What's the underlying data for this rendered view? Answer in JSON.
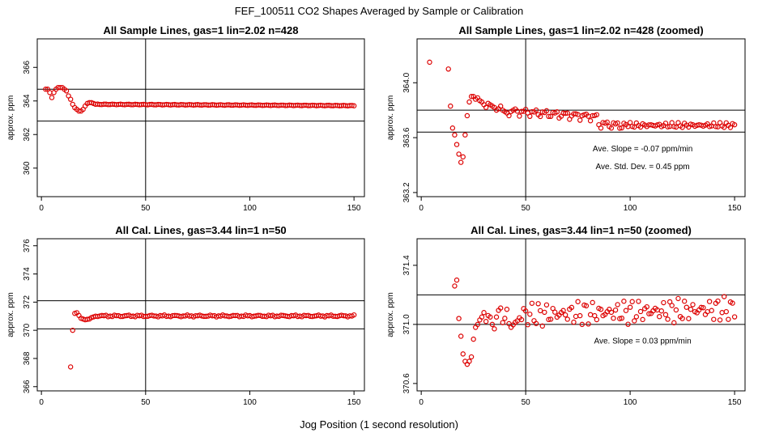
{
  "figure": {
    "title": "FEF_100511  CO2 Shapes Averaged by Sample or Calibration",
    "xlabel": "Jog Position (1 second resolution)"
  },
  "colors": {
    "points": "#dd0000",
    "axes": "#000000",
    "background": "#ffffff"
  },
  "chart_data": [
    {
      "id": "p1",
      "type": "scatter",
      "title": "All Sample Lines, gas=1 lin=2.02 n=428",
      "ylabel": "approx. ppm",
      "xlim": [
        -2,
        155
      ],
      "ylim": [
        358.3,
        367.7
      ],
      "xticks": [
        0,
        50,
        100,
        150
      ],
      "xticklabels": [
        "0",
        "50",
        "100",
        "150"
      ],
      "yticks": [
        360,
        362,
        364,
        366
      ],
      "yticklabels": [
        "360",
        "362",
        "364",
        "366"
      ],
      "vline": 50,
      "hlines": [
        364.7,
        362.8
      ],
      "annotations": [],
      "series": [
        {
          "x": [],
          "y": []
        }
      ]
    },
    {
      "id": "p2",
      "type": "scatter",
      "title": "All Sample Lines, gas=1 lin=2.02 n=428 (zoomed)",
      "ylabel": "approx. ppm",
      "xlim": [
        -2,
        155
      ],
      "ylim": [
        363.17,
        364.32
      ],
      "xticks": [
        0,
        50,
        100,
        150
      ],
      "xticklabels": [
        "0",
        "50",
        "100",
        "150"
      ],
      "yticks": [
        363.2,
        363.6,
        364.0
      ],
      "yticklabels": [
        "363.2",
        "363.6",
        "364.0"
      ],
      "vline": 50,
      "hlines": [
        363.8,
        363.64
      ],
      "annotations": [
        {
          "text": "Ave. Slope =  -0.07  ppm/min",
          "x": 106,
          "y": 363.5
        },
        {
          "text": "Ave. Std. Dev. =  0.45  ppm",
          "x": 106,
          "y": 363.37
        }
      ],
      "series": [
        {
          "x": [],
          "y": []
        }
      ]
    },
    {
      "id": "p3",
      "type": "scatter",
      "title": "All Cal. Lines, gas=3.44 lin=1 n=50",
      "ylabel": "approx. ppm",
      "xlim": [
        -2,
        155
      ],
      "ylim": [
        365.7,
        376.5
      ],
      "xticks": [
        0,
        50,
        100,
        150
      ],
      "xticklabels": [
        "0",
        "50",
        "100",
        "150"
      ],
      "yticks": [
        366,
        368,
        370,
        372,
        374,
        376
      ],
      "yticklabels": [
        "366",
        "368",
        "370",
        "372",
        "374",
        "376"
      ],
      "vline": 50,
      "hlines": [
        372.1,
        370.1
      ],
      "annotations": [],
      "series": [
        {
          "x": [],
          "y": []
        }
      ]
    },
    {
      "id": "p4",
      "type": "scatter",
      "title": "All Cal. Lines, gas=3.44 lin=1 n=50 (zoomed)",
      "ylabel": "approx. ppm",
      "xlim": [
        -2,
        155
      ],
      "ylim": [
        370.55,
        371.58
      ],
      "xticks": [
        0,
        50,
        100,
        150
      ],
      "xticklabels": [
        "0",
        "50",
        "100",
        "150"
      ],
      "yticks": [
        370.6,
        371.0,
        371.4
      ],
      "yticklabels": [
        "370.6",
        "371.0",
        "371.4"
      ],
      "vline": 50,
      "hlines": [
        371.2,
        371.0
      ],
      "annotations": [
        {
          "text": "Ave. Slope =  0.03  ppm/min",
          "x": 106,
          "y": 370.87
        }
      ],
      "series": [
        {
          "x": [],
          "y": []
        }
      ]
    }
  ]
}
